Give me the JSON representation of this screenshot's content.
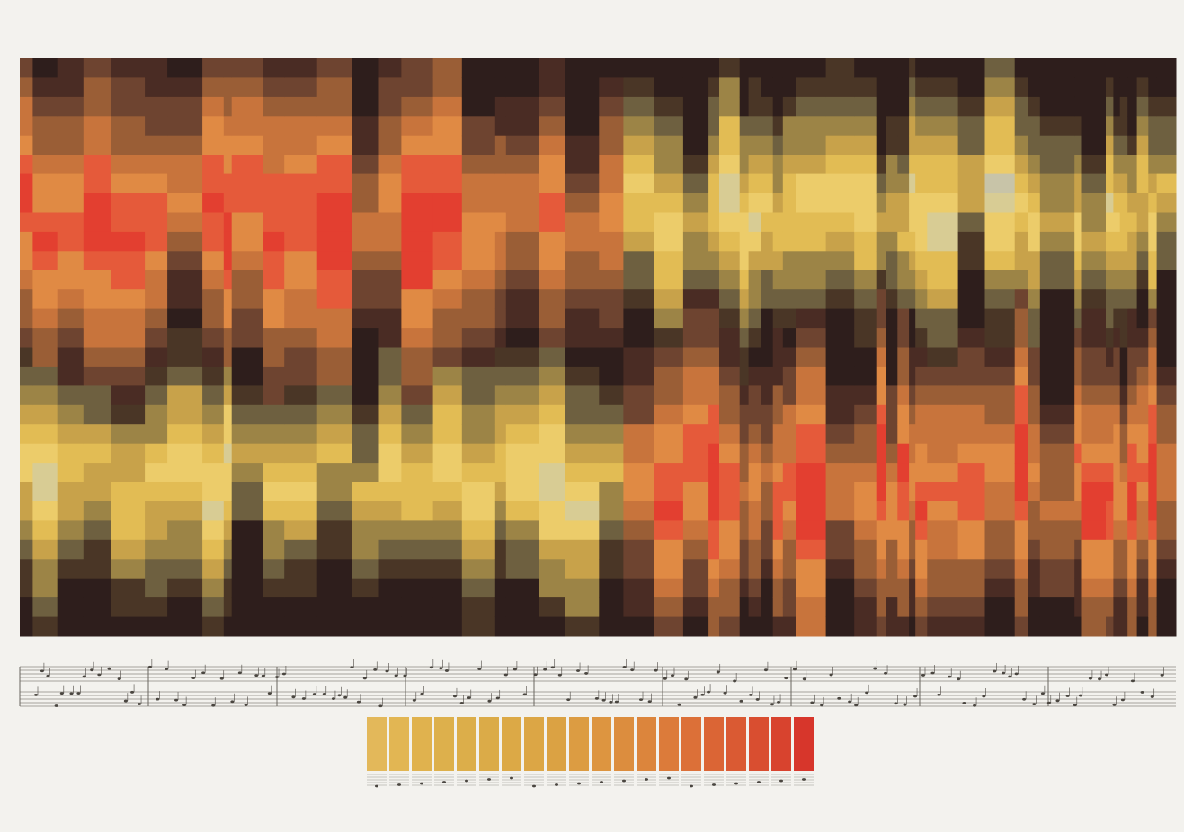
{
  "legend": {
    "colors": [
      "#e3b85a",
      "#e2b653",
      "#e0b24e",
      "#ddb04c",
      "#dcae4a",
      "#dbab48",
      "#dca946",
      "#dca645",
      "#dba243",
      "#dc9c42",
      "#dd9540",
      "#dc8d3e",
      "#dc853c",
      "#dc7b3a",
      "#dc7038",
      "#db6535",
      "#da5a33",
      "#d94e30",
      "#d8432e",
      "#d7362b"
    ]
  }
}
